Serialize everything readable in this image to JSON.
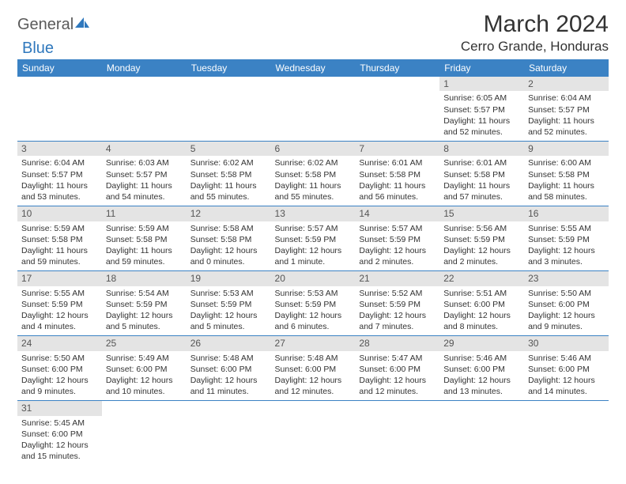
{
  "logo": {
    "text1": "General",
    "text2": "Blue",
    "sail_color": "#2f78bd",
    "text1_color": "#5a5a5a"
  },
  "title": "March 2024",
  "location": "Cerro Grande, Honduras",
  "colors": {
    "header_bg": "#3b82c4",
    "header_text": "#ffffff",
    "daynum_bg": "#e4e4e4",
    "row_border": "#3b82c4",
    "body_text": "#333333"
  },
  "weekdays": [
    "Sunday",
    "Monday",
    "Tuesday",
    "Wednesday",
    "Thursday",
    "Friday",
    "Saturday"
  ],
  "first_weekday_index": 5,
  "days": [
    {
      "n": 1,
      "sr": "6:05 AM",
      "ss": "5:57 PM",
      "dl": "11 hours and 52 minutes."
    },
    {
      "n": 2,
      "sr": "6:04 AM",
      "ss": "5:57 PM",
      "dl": "11 hours and 52 minutes."
    },
    {
      "n": 3,
      "sr": "6:04 AM",
      "ss": "5:57 PM",
      "dl": "11 hours and 53 minutes."
    },
    {
      "n": 4,
      "sr": "6:03 AM",
      "ss": "5:57 PM",
      "dl": "11 hours and 54 minutes."
    },
    {
      "n": 5,
      "sr": "6:02 AM",
      "ss": "5:58 PM",
      "dl": "11 hours and 55 minutes."
    },
    {
      "n": 6,
      "sr": "6:02 AM",
      "ss": "5:58 PM",
      "dl": "11 hours and 55 minutes."
    },
    {
      "n": 7,
      "sr": "6:01 AM",
      "ss": "5:58 PM",
      "dl": "11 hours and 56 minutes."
    },
    {
      "n": 8,
      "sr": "6:01 AM",
      "ss": "5:58 PM",
      "dl": "11 hours and 57 minutes."
    },
    {
      "n": 9,
      "sr": "6:00 AM",
      "ss": "5:58 PM",
      "dl": "11 hours and 58 minutes."
    },
    {
      "n": 10,
      "sr": "5:59 AM",
      "ss": "5:58 PM",
      "dl": "11 hours and 59 minutes."
    },
    {
      "n": 11,
      "sr": "5:59 AM",
      "ss": "5:58 PM",
      "dl": "11 hours and 59 minutes."
    },
    {
      "n": 12,
      "sr": "5:58 AM",
      "ss": "5:58 PM",
      "dl": "12 hours and 0 minutes."
    },
    {
      "n": 13,
      "sr": "5:57 AM",
      "ss": "5:59 PM",
      "dl": "12 hours and 1 minute."
    },
    {
      "n": 14,
      "sr": "5:57 AM",
      "ss": "5:59 PM",
      "dl": "12 hours and 2 minutes."
    },
    {
      "n": 15,
      "sr": "5:56 AM",
      "ss": "5:59 PM",
      "dl": "12 hours and 2 minutes."
    },
    {
      "n": 16,
      "sr": "5:55 AM",
      "ss": "5:59 PM",
      "dl": "12 hours and 3 minutes."
    },
    {
      "n": 17,
      "sr": "5:55 AM",
      "ss": "5:59 PM",
      "dl": "12 hours and 4 minutes."
    },
    {
      "n": 18,
      "sr": "5:54 AM",
      "ss": "5:59 PM",
      "dl": "12 hours and 5 minutes."
    },
    {
      "n": 19,
      "sr": "5:53 AM",
      "ss": "5:59 PM",
      "dl": "12 hours and 5 minutes."
    },
    {
      "n": 20,
      "sr": "5:53 AM",
      "ss": "5:59 PM",
      "dl": "12 hours and 6 minutes."
    },
    {
      "n": 21,
      "sr": "5:52 AM",
      "ss": "5:59 PM",
      "dl": "12 hours and 7 minutes."
    },
    {
      "n": 22,
      "sr": "5:51 AM",
      "ss": "6:00 PM",
      "dl": "12 hours and 8 minutes."
    },
    {
      "n": 23,
      "sr": "5:50 AM",
      "ss": "6:00 PM",
      "dl": "12 hours and 9 minutes."
    },
    {
      "n": 24,
      "sr": "5:50 AM",
      "ss": "6:00 PM",
      "dl": "12 hours and 9 minutes."
    },
    {
      "n": 25,
      "sr": "5:49 AM",
      "ss": "6:00 PM",
      "dl": "12 hours and 10 minutes."
    },
    {
      "n": 26,
      "sr": "5:48 AM",
      "ss": "6:00 PM",
      "dl": "12 hours and 11 minutes."
    },
    {
      "n": 27,
      "sr": "5:48 AM",
      "ss": "6:00 PM",
      "dl": "12 hours and 12 minutes."
    },
    {
      "n": 28,
      "sr": "5:47 AM",
      "ss": "6:00 PM",
      "dl": "12 hours and 12 minutes."
    },
    {
      "n": 29,
      "sr": "5:46 AM",
      "ss": "6:00 PM",
      "dl": "12 hours and 13 minutes."
    },
    {
      "n": 30,
      "sr": "5:46 AM",
      "ss": "6:00 PM",
      "dl": "12 hours and 14 minutes."
    },
    {
      "n": 31,
      "sr": "5:45 AM",
      "ss": "6:00 PM",
      "dl": "12 hours and 15 minutes."
    }
  ],
  "labels": {
    "sunrise": "Sunrise:",
    "sunset": "Sunset:",
    "daylight": "Daylight:"
  }
}
